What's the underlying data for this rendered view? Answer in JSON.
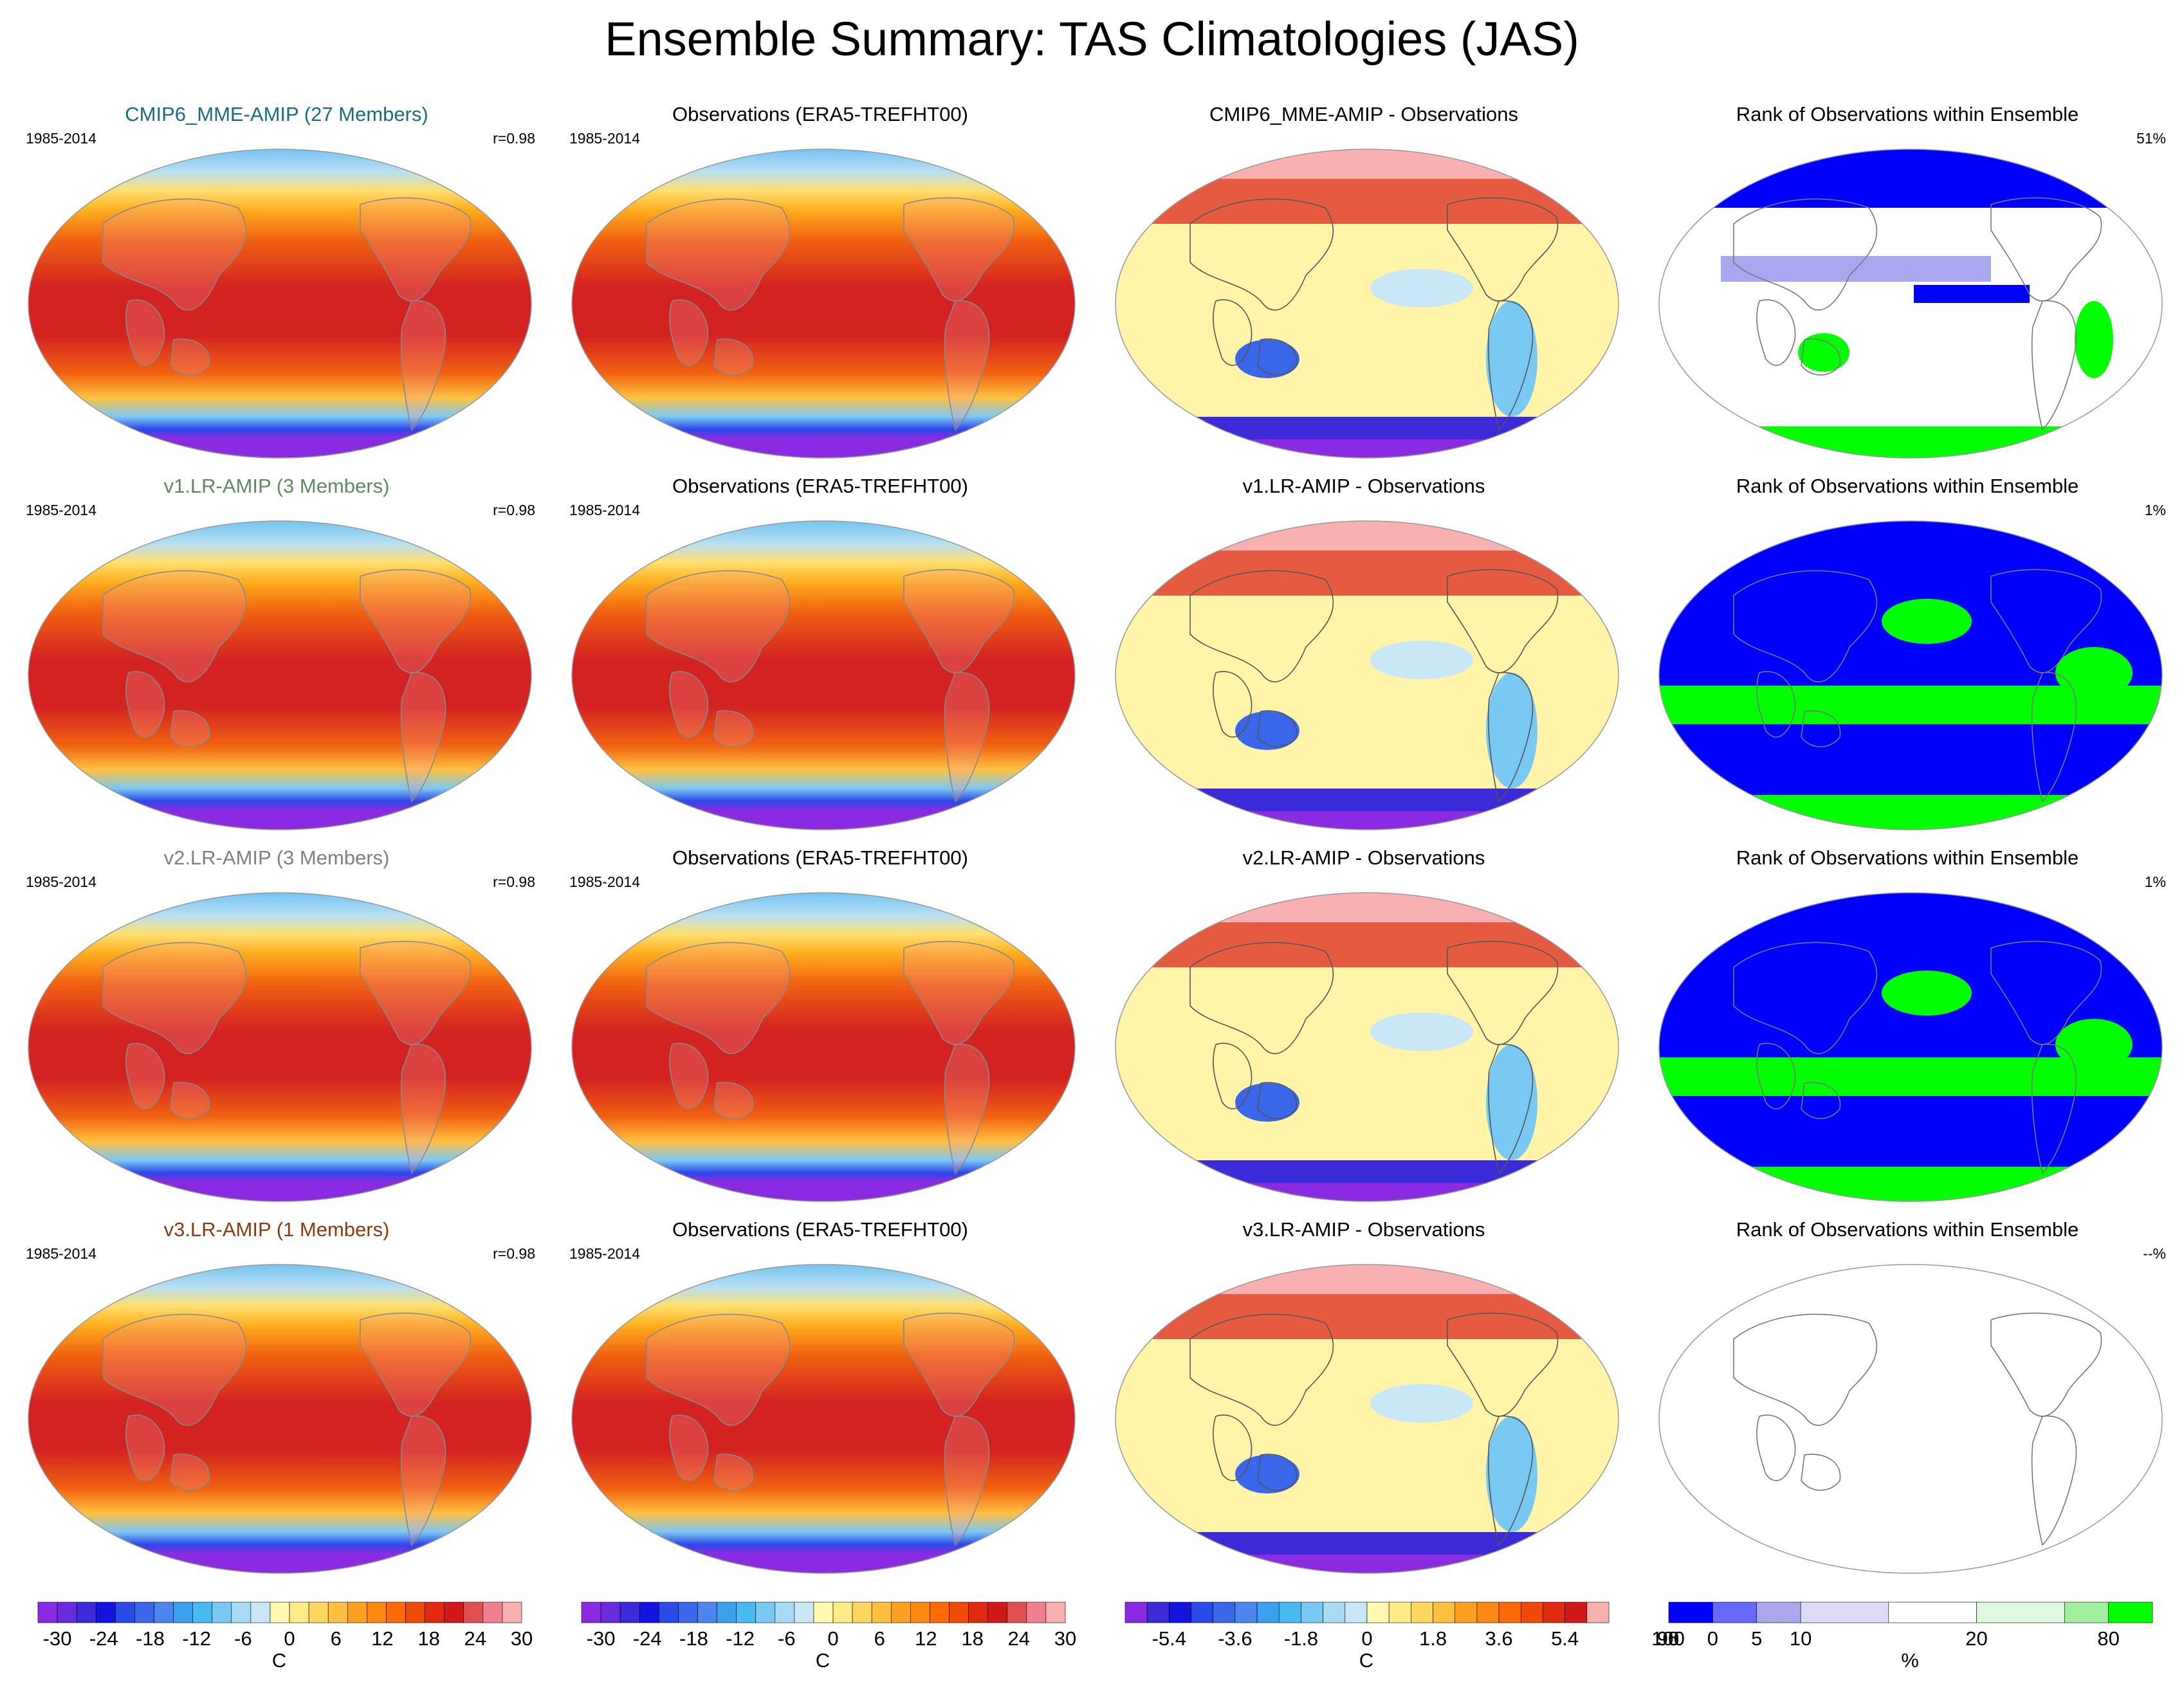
{
  "title": "Ensemble Summary: TAS Climatologies (JAS)",
  "rows": [
    {
      "model": {
        "title": "CMIP6_MME-AMIP (27 Members)",
        "title_color": "#1b6b80",
        "period": "1985-2014",
        "corr": "r=0.98"
      },
      "obs": {
        "title": "Observations (ERA5-TREFHT00)",
        "period": "1985-2014"
      },
      "diff": {
        "title": "CMIP6_MME-AMIP - Observations"
      },
      "rank": {
        "title": "Rank of Observations within Ensemble",
        "value": "51%",
        "style": "mixed"
      }
    },
    {
      "model": {
        "title": "v1.LR-AMIP (3 Members)",
        "title_color": "#5f8a5f",
        "period": "1985-2014",
        "corr": "r=0.98"
      },
      "obs": {
        "title": "Observations (ERA5-TREFHT00)",
        "period": "1985-2014"
      },
      "diff": {
        "title": "v1.LR-AMIP - Observations"
      },
      "rank": {
        "title": "Rank of Observations within Ensemble",
        "value": "1%",
        "style": "binary"
      }
    },
    {
      "model": {
        "title": "v2.LR-AMIP (3 Members)",
        "title_color": "#808080",
        "period": "1985-2014",
        "corr": "r=0.98"
      },
      "obs": {
        "title": "Observations (ERA5-TREFHT00)",
        "period": "1985-2014"
      },
      "diff": {
        "title": "v2.LR-AMIP - Observations"
      },
      "rank": {
        "title": "Rank of Observations within Ensemble",
        "value": "1%",
        "style": "binary"
      }
    },
    {
      "model": {
        "title": "v3.LR-AMIP (1 Members)",
        "title_color": "#8b3a0f",
        "period": "1985-2014",
        "corr": "r=0.98"
      },
      "obs": {
        "title": "Observations (ERA5-TREFHT00)",
        "period": "1985-2014"
      },
      "diff": {
        "title": "v3.LR-AMIP - Observations"
      },
      "rank": {
        "title": "Rank of Observations within Ensemble",
        "value": "--%",
        "style": "empty"
      }
    }
  ],
  "colorbars": [
    {
      "unit": "C",
      "ticks": [
        "-30",
        "-24",
        "-18",
        "-12",
        "-6",
        "0",
        "6",
        "12",
        "18",
        "24",
        "30"
      ],
      "colors": [
        "#8a2be2",
        "#6a2ae0",
        "#3a2ad8",
        "#1414e0",
        "#2a4ae8",
        "#3a66ea",
        "#4a86ec",
        "#3aa0f0",
        "#48baf2",
        "#7ac8f4",
        "#a8dcf6",
        "#c8e8f8",
        "#fff8b0",
        "#ffec88",
        "#ffd860",
        "#ffc040",
        "#ffa020",
        "#ff8810",
        "#ff6a08",
        "#f04a08",
        "#e02a10",
        "#d01818",
        "#e05050",
        "#f08090",
        "#f8b0b0"
      ]
    },
    {
      "unit": "C",
      "ticks": [
        "-30",
        "-24",
        "-18",
        "-12",
        "-6",
        "0",
        "6",
        "12",
        "18",
        "24",
        "30"
      ],
      "colors": [
        "#8a2be2",
        "#6a2ae0",
        "#3a2ad8",
        "#1414e0",
        "#2a4ae8",
        "#3a66ea",
        "#4a86ec",
        "#3aa0f0",
        "#48baf2",
        "#7ac8f4",
        "#a8dcf6",
        "#c8e8f8",
        "#fff8b0",
        "#ffec88",
        "#ffd860",
        "#ffc040",
        "#ffa020",
        "#ff8810",
        "#ff6a08",
        "#f04a08",
        "#e02a10",
        "#d01818",
        "#e05050",
        "#f08090",
        "#f8b0b0"
      ]
    },
    {
      "unit": "C",
      "ticks": [
        "-5.4",
        "-3.6",
        "-1.8",
        "0",
        "1.8",
        "3.6",
        "5.4"
      ],
      "tick_positions": [
        2,
        5,
        8,
        11,
        14,
        17,
        20
      ],
      "colors": [
        "#8a2be2",
        "#3a2ad8",
        "#1414e0",
        "#2a4ae8",
        "#3a66ea",
        "#4a86ec",
        "#3aa0f0",
        "#48baf2",
        "#7ac8f4",
        "#a8dcf6",
        "#c8e8f8",
        "#fff8b0",
        "#ffec88",
        "#ffd860",
        "#ffc040",
        "#ffa020",
        "#ff8810",
        "#ff6a08",
        "#f04a08",
        "#e02a10",
        "#d01818",
        "#f8b0b0"
      ]
    },
    {
      "unit": "%",
      "ticks": [
        "0",
        "5",
        "10",
        "20",
        "80",
        "90",
        "95",
        "100"
      ],
      "tick_positions": [
        1,
        2,
        3,
        5,
        7,
        9,
        10,
        11
      ],
      "box_weights": [
        1,
        1,
        1,
        2,
        2,
        2,
        1,
        1
      ],
      "colors": [
        "#0000ff",
        "#6868ff",
        "#a8a8f0",
        "#dcdcf8",
        "#ffffff",
        "#e0f8e0",
        "#a0f0a0",
        "#00ff00"
      ]
    }
  ]
}
